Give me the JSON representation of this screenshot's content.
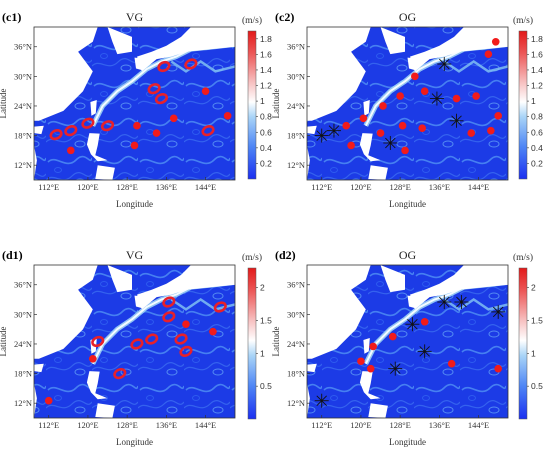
{
  "chart_data": [
    {
      "type": "map-scatter",
      "panel_label": "(c1)",
      "title": "VG",
      "xlabel": "Longitude",
      "ylabel": "Latitude",
      "x_ticks": [
        "112°E",
        "120°E",
        "128°E",
        "136°E",
        "144°E"
      ],
      "y_ticks": [
        "12°N",
        "18°N",
        "24°N",
        "30°N",
        "36°N"
      ],
      "xlim": [
        109,
        150
      ],
      "ylim": [
        9,
        40
      ],
      "colorbar": {
        "unit": "(m/s)",
        "min": 0,
        "max": 1.9,
        "ticks": [
          "0.2",
          "0.4",
          "0.6",
          "0.8",
          "1",
          "1.2",
          "1.4",
          "1.6",
          "1.8"
        ]
      },
      "marker_style": "red rings",
      "markers": [
        {
          "lon": 113.5,
          "lat": 18.2,
          "kind": "ring"
        },
        {
          "lon": 116.5,
          "lat": 19.0,
          "kind": "ring"
        },
        {
          "lon": 120.0,
          "lat": 20.5,
          "kind": "ring"
        },
        {
          "lon": 124.0,
          "lat": 20.0,
          "kind": "ring"
        },
        {
          "lon": 135.5,
          "lat": 32.0,
          "kind": "ring"
        },
        {
          "lon": 141.0,
          "lat": 32.5,
          "kind": "ring"
        },
        {
          "lon": 133.5,
          "lat": 27.5,
          "kind": "ring"
        },
        {
          "lon": 135.0,
          "lat": 25.5,
          "kind": "ring"
        },
        {
          "lon": 144.5,
          "lat": 19.0,
          "kind": "ring"
        },
        {
          "lon": 144.0,
          "lat": 27.0,
          "kind": "dot"
        },
        {
          "lon": 148.5,
          "lat": 22.0,
          "kind": "dot"
        },
        {
          "lon": 116.5,
          "lat": 15.0,
          "kind": "dot"
        },
        {
          "lon": 129.5,
          "lat": 16.0,
          "kind": "dot"
        },
        {
          "lon": 130.0,
          "lat": 20.0,
          "kind": "dot"
        },
        {
          "lon": 137.5,
          "lat": 21.5,
          "kind": "dot"
        },
        {
          "lon": 134.0,
          "lat": 18.5,
          "kind": "dot"
        }
      ]
    },
    {
      "type": "map-scatter",
      "panel_label": "(c2)",
      "title": "OG",
      "xlabel": "Longitude",
      "ylabel": "Latitude",
      "x_ticks": [
        "112°E",
        "120°E",
        "128°E",
        "136°E",
        "144°E"
      ],
      "y_ticks": [
        "12°N",
        "18°N",
        "24°N",
        "30°N",
        "36°N"
      ],
      "xlim": [
        109,
        150
      ],
      "ylim": [
        9,
        40
      ],
      "colorbar": {
        "unit": "(m/s)",
        "min": 0,
        "max": 1.9,
        "ticks": [
          "0.2",
          "0.4",
          "0.6",
          "0.8",
          "1",
          "1.2",
          "1.4",
          "1.6",
          "1.8"
        ]
      },
      "marker_style": "red dots and black asterisks",
      "markers": [
        {
          "lon": 147.5,
          "lat": 37.0,
          "kind": "dot"
        },
        {
          "lon": 137.0,
          "lat": 32.5,
          "kind": "star"
        },
        {
          "lon": 146.0,
          "lat": 34.5,
          "kind": "dot"
        },
        {
          "lon": 131.0,
          "lat": 30.0,
          "kind": "dot"
        },
        {
          "lon": 128.0,
          "lat": 26.0,
          "kind": "dot"
        },
        {
          "lon": 135.5,
          "lat": 25.5,
          "kind": "star"
        },
        {
          "lon": 133.0,
          "lat": 27.0,
          "kind": "dot"
        },
        {
          "lon": 139.5,
          "lat": 25.5,
          "kind": "dot"
        },
        {
          "lon": 143.5,
          "lat": 26.0,
          "kind": "dot"
        },
        {
          "lon": 124.5,
          "lat": 24.0,
          "kind": "dot"
        },
        {
          "lon": 120.5,
          "lat": 21.5,
          "kind": "dot"
        },
        {
          "lon": 139.5,
          "lat": 21.0,
          "kind": "star"
        },
        {
          "lon": 148.0,
          "lat": 22.0,
          "kind": "dot"
        },
        {
          "lon": 128.5,
          "lat": 20.0,
          "kind": "dot"
        },
        {
          "lon": 132.5,
          "lat": 19.5,
          "kind": "dot"
        },
        {
          "lon": 112.0,
          "lat": 18.0,
          "kind": "star"
        },
        {
          "lon": 114.5,
          "lat": 19.0,
          "kind": "star"
        },
        {
          "lon": 118.0,
          "lat": 16.0,
          "kind": "dot"
        },
        {
          "lon": 124.0,
          "lat": 18.5,
          "kind": "dot"
        },
        {
          "lon": 126.0,
          "lat": 16.5,
          "kind": "star"
        },
        {
          "lon": 129.0,
          "lat": 15.0,
          "kind": "dot"
        },
        {
          "lon": 142.5,
          "lat": 18.5,
          "kind": "dot"
        },
        {
          "lon": 146.5,
          "lat": 19.0,
          "kind": "dot"
        },
        {
          "lon": 117.0,
          "lat": 20.0,
          "kind": "dot"
        }
      ]
    },
    {
      "type": "map-scatter",
      "panel_label": "(d1)",
      "title": "VG",
      "xlabel": "Longitude",
      "ylabel": "Latitude",
      "x_ticks": [
        "112°E",
        "120°E",
        "128°E",
        "136°E",
        "144°E"
      ],
      "y_ticks": [
        "12°N",
        "18°N",
        "24°N",
        "30°N",
        "36°N"
      ],
      "xlim": [
        109,
        150
      ],
      "ylim": [
        9,
        40
      ],
      "colorbar": {
        "unit": "(m/s)",
        "min": 0,
        "max": 2.3,
        "ticks": [
          "0.5",
          "1",
          "1.5",
          "2"
        ]
      },
      "marker_style": "red rings",
      "markers": [
        {
          "lon": 136.5,
          "lat": 32.5,
          "kind": "ring"
        },
        {
          "lon": 136.5,
          "lat": 29.5,
          "kind": "ring"
        },
        {
          "lon": 147.0,
          "lat": 31.5,
          "kind": "ring"
        },
        {
          "lon": 133.0,
          "lat": 25.0,
          "kind": "ring"
        },
        {
          "lon": 130.0,
          "lat": 24.0,
          "kind": "ring"
        },
        {
          "lon": 122.0,
          "lat": 24.5,
          "kind": "ring"
        },
        {
          "lon": 140.0,
          "lat": 22.5,
          "kind": "ring"
        },
        {
          "lon": 139.0,
          "lat": 25.0,
          "kind": "ring"
        },
        {
          "lon": 126.5,
          "lat": 18.0,
          "kind": "ring"
        },
        {
          "lon": 145.5,
          "lat": 26.5,
          "kind": "dot"
        },
        {
          "lon": 121.0,
          "lat": 21.0,
          "kind": "dot"
        },
        {
          "lon": 112.0,
          "lat": 12.5,
          "kind": "dot"
        },
        {
          "lon": 140.0,
          "lat": 28.0,
          "kind": "dot"
        }
      ]
    },
    {
      "type": "map-scatter",
      "panel_label": "(d2)",
      "title": "OG",
      "xlabel": "Longitude",
      "ylabel": "Latitude",
      "x_ticks": [
        "112°E",
        "120°E",
        "128°E",
        "136°E",
        "144°E"
      ],
      "y_ticks": [
        "12°N",
        "18°N",
        "24°N",
        "30°N",
        "36°N"
      ],
      "xlim": [
        109,
        150
      ],
      "ylim": [
        9,
        40
      ],
      "colorbar": {
        "unit": "(m/s)",
        "min": 0,
        "max": 2.3,
        "ticks": [
          "0.5",
          "1",
          "1.5",
          "2"
        ]
      },
      "marker_style": "red dots and black asterisks",
      "markers": [
        {
          "lon": 137.0,
          "lat": 32.5,
          "kind": "star"
        },
        {
          "lon": 140.5,
          "lat": 32.5,
          "kind": "star"
        },
        {
          "lon": 148.0,
          "lat": 30.5,
          "kind": "star"
        },
        {
          "lon": 130.5,
          "lat": 28.0,
          "kind": "star"
        },
        {
          "lon": 133.0,
          "lat": 28.5,
          "kind": "dot"
        },
        {
          "lon": 126.5,
          "lat": 25.5,
          "kind": "dot"
        },
        {
          "lon": 133.0,
          "lat": 22.5,
          "kind": "star"
        },
        {
          "lon": 138.5,
          "lat": 20.0,
          "kind": "dot"
        },
        {
          "lon": 122.5,
          "lat": 23.5,
          "kind": "dot"
        },
        {
          "lon": 120.0,
          "lat": 20.5,
          "kind": "dot"
        },
        {
          "lon": 127.0,
          "lat": 19.0,
          "kind": "star"
        },
        {
          "lon": 122.0,
          "lat": 19.0,
          "kind": "dot"
        },
        {
          "lon": 148.0,
          "lat": 19.0,
          "kind": "dot"
        },
        {
          "lon": 112.0,
          "lat": 12.5,
          "kind": "star"
        }
      ]
    }
  ]
}
